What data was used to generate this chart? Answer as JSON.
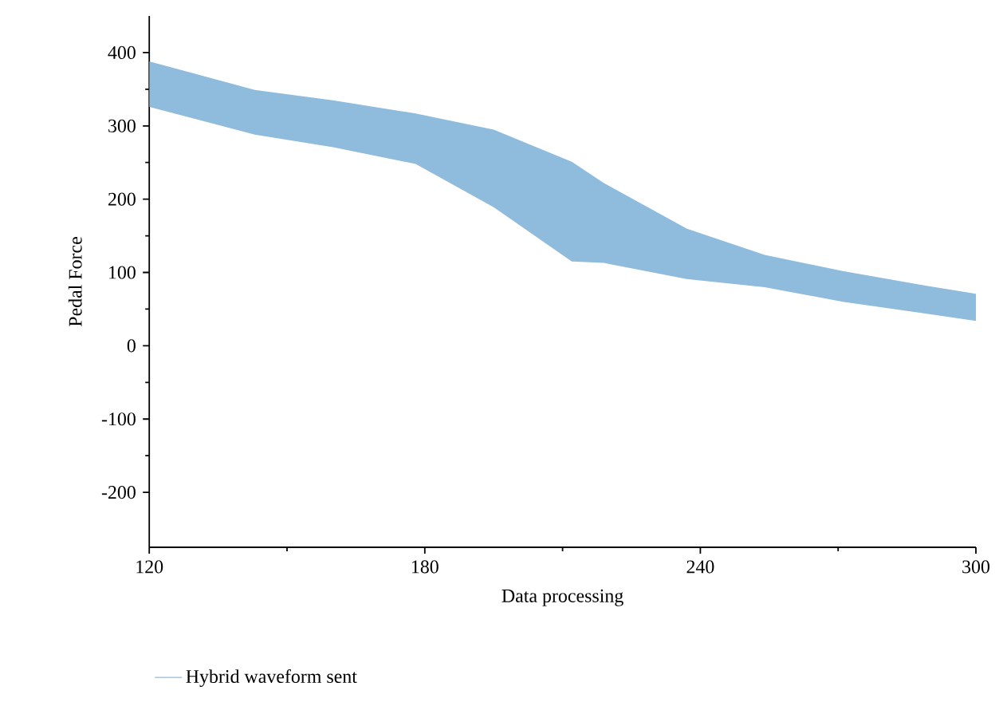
{
  "chart_data": {
    "type": "line",
    "xlabel": "Data processing",
    "ylabel": "Pedal Force",
    "x": [
      120,
      143,
      160,
      178,
      195,
      212,
      219,
      237,
      254,
      271,
      289,
      300
    ],
    "series": [
      {
        "name": "Hybrid waveform sent",
        "color": "#8fbbdc",
        "values": [
          null,
          null,
          null,
          null,
          null,
          null,
          null,
          null,
          null,
          null,
          null,
          null
        ],
        "lower": [
          326,
          288,
          271,
          248,
          189,
          115,
          113,
          91,
          80,
          60,
          44,
          34
        ],
        "upper": [
          388,
          349,
          335,
          317,
          295,
          251,
          222,
          160,
          124,
          102,
          82,
          71
        ]
      }
    ],
    "xlim": [
      120,
      300
    ],
    "ylim": [
      -275,
      450
    ],
    "xticks": [
      120,
      180,
      240,
      300
    ],
    "yticks": [
      -200,
      -100,
      0,
      100,
      200,
      300,
      400
    ],
    "legend": "bottom left"
  }
}
